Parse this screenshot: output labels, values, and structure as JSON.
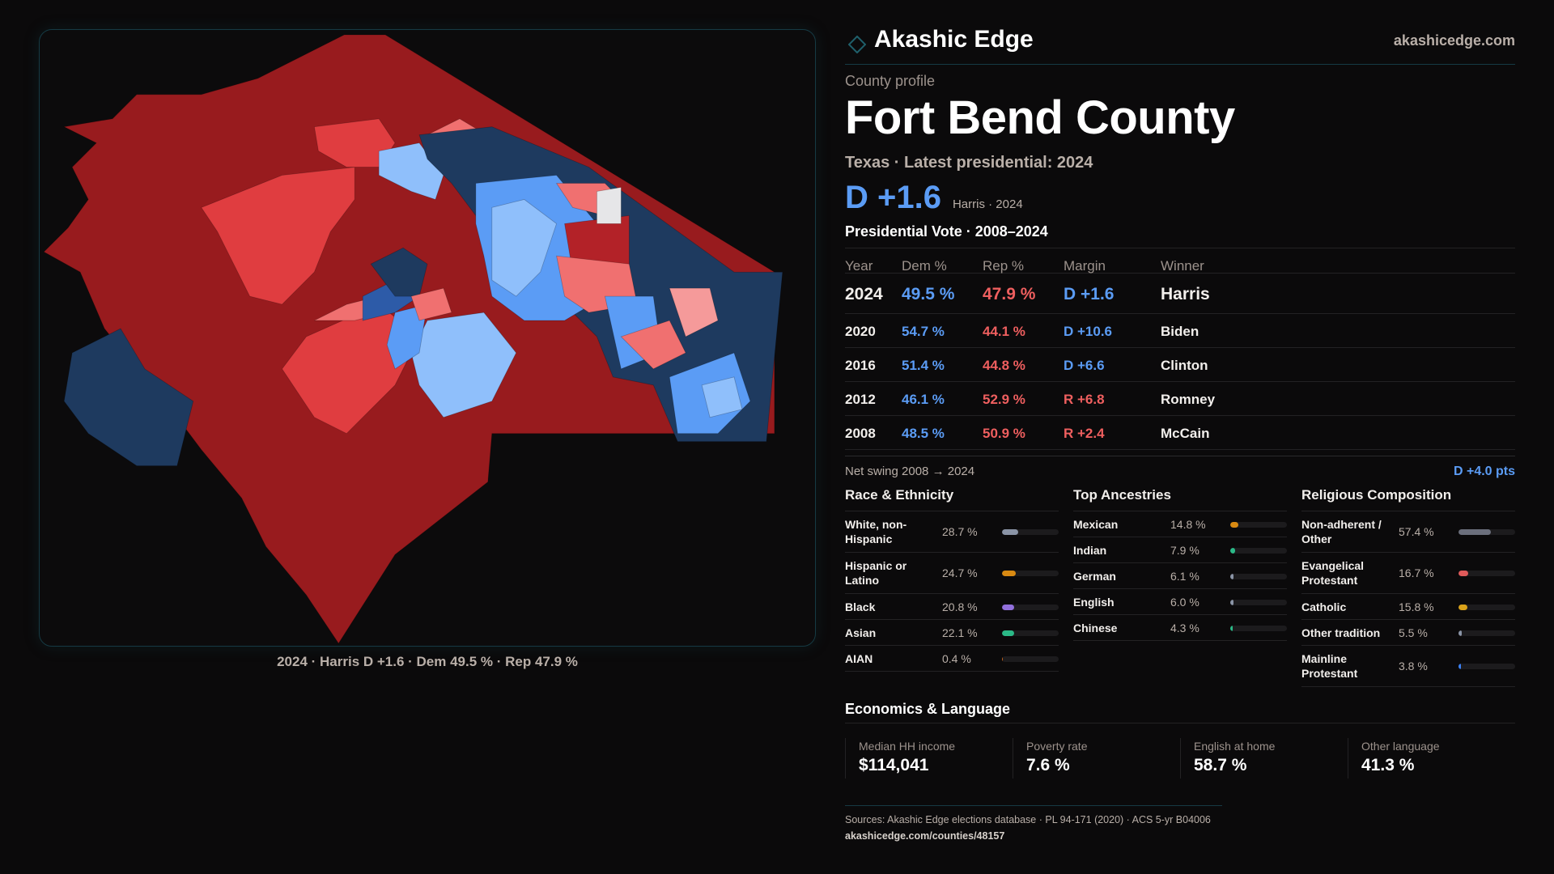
{
  "brand": {
    "name": "Akashic Edge",
    "url": "akashicedge.com",
    "accent": "#1f5f6a",
    "logo_icon": "diamond-outline-icon"
  },
  "profile": {
    "eyebrow": "County profile",
    "title": "Fort Bend County",
    "subtitle": "Texas · Latest presidential: 2024",
    "headline_margin": "D +1.6",
    "headline_note": "Harris · 2024"
  },
  "colors": {
    "dem": "#5b9cf5",
    "rep": "#ef5f5f",
    "background": "#0b0a0b"
  },
  "vote_section": {
    "title": "Presidential Vote · 2008–2024",
    "headers": [
      "Year",
      "Dem %",
      "Rep %",
      "Margin",
      "Winner"
    ],
    "rows": [
      {
        "year": "2024",
        "dem": "49.5 %",
        "rep": "47.9 %",
        "margin": "D +1.6",
        "party": "dem",
        "winner": "Harris"
      },
      {
        "year": "2020",
        "dem": "54.7 %",
        "rep": "44.1 %",
        "margin": "D +10.6",
        "party": "dem",
        "winner": "Biden"
      },
      {
        "year": "2016",
        "dem": "51.4 %",
        "rep": "44.8 %",
        "margin": "D +6.6",
        "party": "dem",
        "winner": "Clinton"
      },
      {
        "year": "2012",
        "dem": "46.1 %",
        "rep": "52.9 %",
        "margin": "R +6.8",
        "party": "rep",
        "winner": "Romney"
      },
      {
        "year": "2008",
        "dem": "48.5 %",
        "rep": "50.9 %",
        "margin": "R +2.4",
        "party": "rep",
        "winner": "McCain"
      }
    ],
    "swing_label": "Net swing 2008 → 2024",
    "swing_value": "D +4.0 pts"
  },
  "race": {
    "title": "Race & Ethnicity",
    "items": [
      {
        "label": "White, non-Hispanic",
        "value": "28.7 %",
        "pct": 28.7,
        "color": "#8a94a6"
      },
      {
        "label": "Hispanic or Latino",
        "value": "24.7 %",
        "pct": 24.7,
        "color": "#d98a12"
      },
      {
        "label": "Black",
        "value": "20.8 %",
        "pct": 20.8,
        "color": "#9270dc"
      },
      {
        "label": "Asian",
        "value": "22.1 %",
        "pct": 22.1,
        "color": "#2bb987"
      },
      {
        "label": "AIAN",
        "value": "0.4 %",
        "pct": 0.4,
        "color": "#c4621a"
      }
    ]
  },
  "ancestry": {
    "title": "Top Ancestries",
    "items": [
      {
        "label": "Mexican",
        "value": "14.8 %",
        "pct": 14.8,
        "color": "#d98a12"
      },
      {
        "label": "Indian",
        "value": "7.9 %",
        "pct": 7.9,
        "color": "#2bb987"
      },
      {
        "label": "German",
        "value": "6.1 %",
        "pct": 6.1,
        "color": "#8a94a6"
      },
      {
        "label": "English",
        "value": "6.0 %",
        "pct": 6.0,
        "color": "#8a94a6"
      },
      {
        "label": "Chinese",
        "value": "4.3 %",
        "pct": 4.3,
        "color": "#2bb987"
      }
    ]
  },
  "religion": {
    "title": "Religious Composition",
    "items": [
      {
        "label": "Non-adherent / Other",
        "value": "57.4 %",
        "pct": 57.4,
        "color": "#6b6f7c"
      },
      {
        "label": "Evangelical Protestant",
        "value": "16.7 %",
        "pct": 16.7,
        "color": "#e05a5a"
      },
      {
        "label": "Catholic",
        "value": "15.8 %",
        "pct": 15.8,
        "color": "#d9a21a"
      },
      {
        "label": "Other tradition",
        "value": "5.5 %",
        "pct": 5.5,
        "color": "#8a94a6"
      },
      {
        "label": "Mainline Protestant",
        "value": "3.8 %",
        "pct": 3.8,
        "color": "#3b82f6"
      }
    ]
  },
  "economics": {
    "title": "Economics & Language",
    "cells": [
      {
        "label": "Median HH income",
        "value": "$114,041"
      },
      {
        "label": "Poverty rate",
        "value": "7.6 %"
      },
      {
        "label": "English at home",
        "value": "58.7 %"
      },
      {
        "label": "Other language",
        "value": "41.3 %"
      }
    ]
  },
  "sources": {
    "text": "Sources: Akashic Edge elections database · PL 94-171 (2020) · ACS 5-yr B04006",
    "url": "akashicedge.com/counties/48157"
  },
  "map": {
    "caption": "2024 · Harris D +1.6 · Dem 49.5 % · Rep 47.9  %",
    "legend_shades": {
      "safe_rep": "#981b1e",
      "likely_rep": "#b32228",
      "lean_rep": "#e03d40",
      "tilt_rep": "#f07070",
      "slight_rep": "#f59a9a",
      "toss": "#e6e6e8",
      "slight_dem": "#8fbffb",
      "tilt_dem": "#5b9cf5",
      "lean_dem": "#3a7de6",
      "likely_dem": "#2d5ba8",
      "safe_dem": "#1e3a5f"
    }
  }
}
